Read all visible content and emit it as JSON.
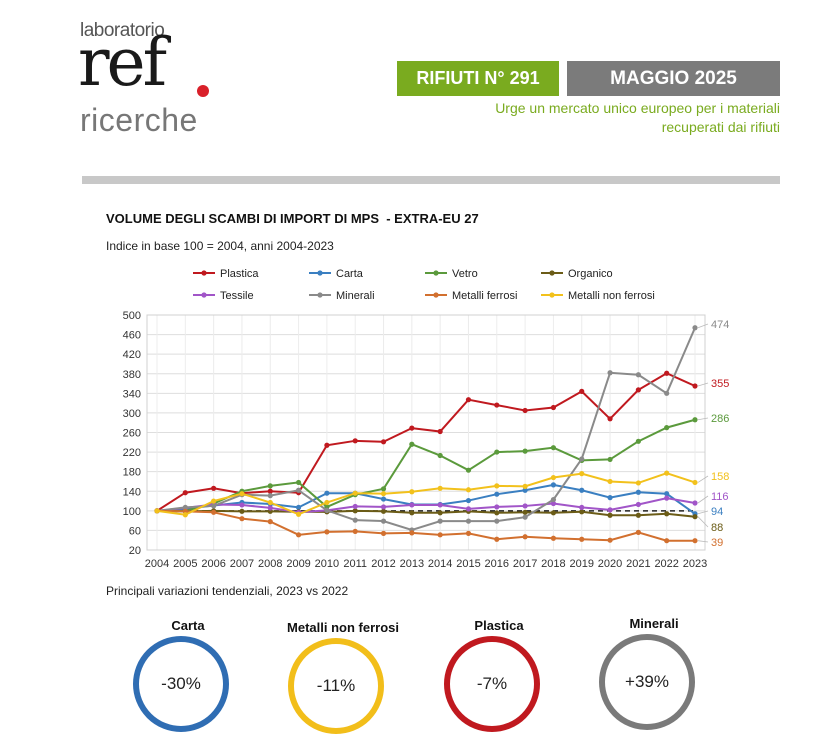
{
  "header": {
    "logo_top": "laboratorio",
    "logo_main": "ref",
    "logo_bottom": "ricerche",
    "issue": "RIFIUTI N° 291",
    "date": "MAGGIO 2025",
    "subtitle_line1": "Urge un mercato unico europeo per i materiali",
    "subtitle_line2": "recuperati dai rifiuti",
    "accent_color": "#7aab1f",
    "date_badge_color": "#7b7b7b"
  },
  "chart_data": {
    "type": "line",
    "title": "VOLUME DEGLI SCAMBI DI IMPORT DI MPS  - EXTRA-EU 27",
    "subtitle": "Indice in base 100 = 2004, anni 2004-2023",
    "xlabel": "",
    "ylabel": "",
    "ylim": [
      20,
      500
    ],
    "yticks": [
      20,
      60,
      100,
      140,
      180,
      220,
      260,
      300,
      340,
      380,
      420,
      460,
      500
    ],
    "x": [
      2004,
      2005,
      2006,
      2007,
      2008,
      2009,
      2010,
      2011,
      2012,
      2013,
      2014,
      2015,
      2016,
      2017,
      2018,
      2019,
      2020,
      2021,
      2022,
      2023
    ],
    "reference_line": 100,
    "legend_position": "top",
    "series": [
      {
        "name": "Plastica",
        "color": "#c0191f",
        "end_label": "355",
        "values": [
          100,
          137,
          146,
          136,
          140,
          137,
          234,
          243,
          241,
          269,
          262,
          327,
          316,
          305,
          311,
          344,
          288,
          347,
          381,
          355
        ]
      },
      {
        "name": "Carta",
        "color": "#3a7fc1",
        "end_label": "94",
        "values": [
          100,
          104,
          111,
          117,
          114,
          107,
          136,
          136,
          124,
          113,
          113,
          121,
          134,
          142,
          153,
          142,
          127,
          138,
          135,
          94
        ]
      },
      {
        "name": "Vetro",
        "color": "#5b9a3c",
        "end_label": "286",
        "values": [
          100,
          100,
          115,
          140,
          151,
          158,
          108,
          133,
          145,
          236,
          213,
          183,
          220,
          222,
          229,
          203,
          205,
          242,
          270,
          286
        ]
      },
      {
        "name": "Organico",
        "color": "#6b5c17",
        "end_label": "88",
        "values": [
          100,
          99,
          100,
          99,
          99,
          98,
          98,
          100,
          99,
          96,
          96,
          99,
          96,
          97,
          96,
          98,
          91,
          91,
          94,
          88
        ]
      },
      {
        "name": "Tessile",
        "color": "#a155c8",
        "end_label": "116",
        "values": [
          100,
          106,
          113,
          112,
          106,
          97,
          101,
          109,
          108,
          112,
          112,
          104,
          108,
          110,
          115,
          107,
          102,
          113,
          126,
          116
        ]
      },
      {
        "name": "Minerali",
        "color": "#8a8a8a",
        "end_label": "474",
        "values": [
          100,
          107,
          110,
          133,
          131,
          142,
          101,
          81,
          79,
          61,
          79,
          79,
          79,
          87,
          123,
          206,
          382,
          378,
          340,
          474
        ]
      },
      {
        "name": "Metalli ferrosi",
        "color": "#d2702f",
        "end_label": "39",
        "values": [
          100,
          99,
          97,
          84,
          78,
          51,
          57,
          58,
          54,
          55,
          51,
          54,
          42,
          47,
          44,
          42,
          40,
          56,
          39,
          39
        ]
      },
      {
        "name": "Metalli non ferrosi",
        "color": "#f2c11c",
        "end_label": "158",
        "values": [
          100,
          92,
          120,
          135,
          117,
          93,
          117,
          136,
          135,
          139,
          146,
          143,
          151,
          150,
          168,
          176,
          160,
          157,
          177,
          158
        ]
      }
    ]
  },
  "footer": {
    "caption": "Principali variazioni tendenziali, 2023 vs 2022",
    "kpis": [
      {
        "label": "Carta",
        "value": "-30%",
        "color": "#2f6db3"
      },
      {
        "label": "Metalli non ferrosi",
        "value": "-11%",
        "color": "#f2be1a"
      },
      {
        "label": "Plastica",
        "value": "-7%",
        "color": "#c0191f"
      },
      {
        "label": "Minerali",
        "value": "+39%",
        "color": "#7a7a7a"
      }
    ]
  }
}
